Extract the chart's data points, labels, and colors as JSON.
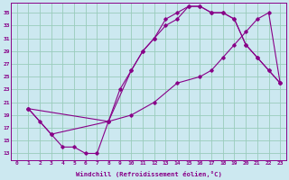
{
  "xlabel": "Windchill (Refroidissement éolien,°C)",
  "bg_color": "#cce8f0",
  "line_color": "#880088",
  "grid_color": "#99ccbb",
  "xlim": [
    -0.5,
    23.5
  ],
  "ylim": [
    12,
    36.5
  ],
  "xticks": [
    0,
    1,
    2,
    3,
    4,
    5,
    6,
    7,
    8,
    9,
    10,
    11,
    12,
    13,
    14,
    15,
    16,
    17,
    18,
    19,
    20,
    21,
    22,
    23
  ],
  "yticks": [
    13,
    15,
    17,
    19,
    21,
    23,
    25,
    27,
    29,
    31,
    33,
    35
  ],
  "curve1_x": [
    1,
    2,
    3,
    4,
    5,
    6,
    7,
    8,
    9,
    10,
    11,
    12,
    13,
    14,
    15,
    16,
    17,
    18,
    19,
    20,
    21,
    22,
    23
  ],
  "curve1_y": [
    20,
    18,
    16,
    14,
    14,
    13,
    13,
    18,
    23,
    26,
    29,
    31,
    34,
    35,
    36,
    36,
    35,
    35,
    34,
    30,
    28,
    26,
    24
  ],
  "curve2_x": [
    1,
    3,
    8,
    10,
    11,
    12,
    13,
    14,
    15,
    16,
    17,
    18,
    19,
    20,
    21,
    22,
    23
  ],
  "curve2_y": [
    20,
    16,
    18,
    26,
    29,
    31,
    33,
    34,
    36,
    36,
    35,
    35,
    34,
    30,
    28,
    26,
    24
  ],
  "curve3_x": [
    1,
    8,
    10,
    12,
    14,
    16,
    17,
    18,
    19,
    20,
    21,
    22,
    23
  ],
  "curve3_y": [
    20,
    18,
    19,
    21,
    24,
    25,
    26,
    28,
    30,
    32,
    34,
    35,
    24
  ]
}
